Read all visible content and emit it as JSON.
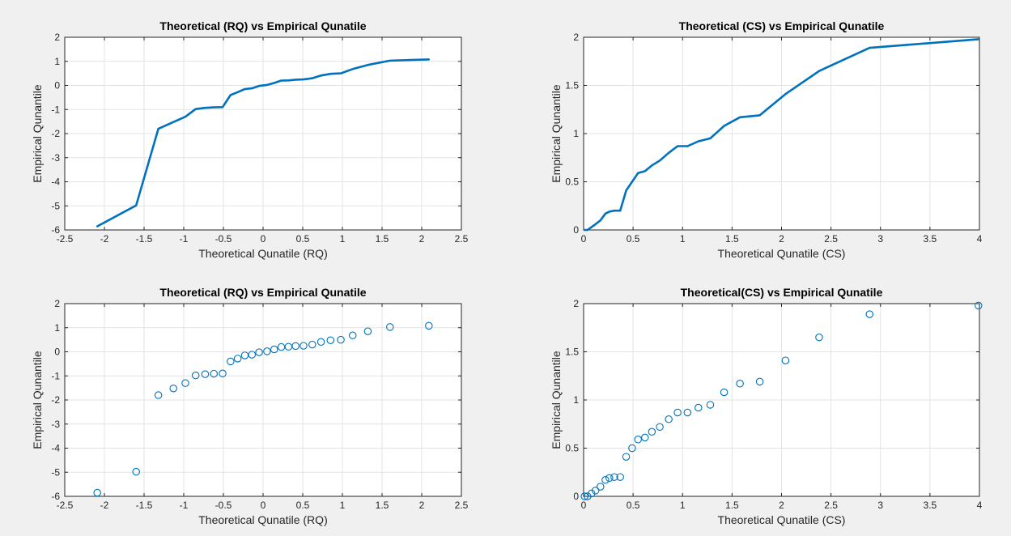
{
  "figure": {
    "background": "#f0f0f0",
    "line_color": "#0072bd",
    "grid_color": "#e3e3e3"
  },
  "chart_data": [
    {
      "type": "line",
      "title": "Theoretical (RQ) vs Empirical Qunatile",
      "xlabel": "Theoretical Qunatile (RQ)",
      "ylabel": "Empirical Qunantile",
      "xlim": [
        -2.5,
        2.5
      ],
      "ylim": [
        -6,
        2
      ],
      "xticks": [
        -2.5,
        -2,
        -1.5,
        -1,
        -0.5,
        0,
        0.5,
        1,
        1.5,
        2,
        2.5
      ],
      "xtick_labels": [
        "-2.5",
        "-2",
        "-1.5",
        "-1",
        "-0.5",
        "0",
        "0.5",
        "1",
        "1.5",
        "2",
        "2.5"
      ],
      "yticks": [
        -6,
        -5,
        -4,
        -3,
        -2,
        -1,
        0,
        1,
        2
      ],
      "ytick_labels": [
        "-6",
        "-5",
        "-4",
        "-3",
        "-2",
        "-1",
        "0",
        "1",
        "2"
      ],
      "grid": true,
      "series": [
        {
          "x": [
            -2.09,
            -1.6,
            -1.32,
            -1.13,
            -0.98,
            -0.85,
            -0.73,
            -0.62,
            -0.51,
            -0.41,
            -0.32,
            -0.23,
            -0.14,
            -0.05,
            0.05,
            0.14,
            0.23,
            0.32,
            0.41,
            0.51,
            0.62,
            0.73,
            0.85,
            0.98,
            1.13,
            1.32,
            1.6,
            2.09
          ],
          "y": [
            -5.85,
            -4.98,
            -1.8,
            -1.52,
            -1.3,
            -0.98,
            -0.93,
            -0.91,
            -0.9,
            -0.4,
            -0.28,
            -0.15,
            -0.12,
            -0.02,
            0.02,
            0.1,
            0.2,
            0.21,
            0.24,
            0.25,
            0.3,
            0.41,
            0.48,
            0.5,
            0.68,
            0.85,
            1.03,
            1.08
          ]
        }
      ]
    },
    {
      "type": "line",
      "title": "Theoretical (CS)  vs Empirical Qunatile",
      "xlabel": "Theoretical Qunatile (CS)",
      "ylabel": "Empirical Qunantile",
      "xlim": [
        0,
        4
      ],
      "ylim": [
        0,
        2
      ],
      "xticks": [
        0,
        0.5,
        1,
        1.5,
        2,
        2.5,
        3,
        3.5,
        4
      ],
      "xtick_labels": [
        "0",
        "0.5",
        "1",
        "1.5",
        "2",
        "2.5",
        "3",
        "3.5",
        "4"
      ],
      "yticks": [
        0,
        0.5,
        1,
        1.5,
        2
      ],
      "ytick_labels": [
        "0",
        "0.5",
        "1",
        "1.5",
        "2"
      ],
      "grid": true,
      "series": [
        {
          "x": [
            0.01,
            0.04,
            0.08,
            0.12,
            0.17,
            0.22,
            0.26,
            0.31,
            0.37,
            0.43,
            0.49,
            0.55,
            0.62,
            0.69,
            0.77,
            0.86,
            0.95,
            1.05,
            1.16,
            1.28,
            1.42,
            1.58,
            1.78,
            2.04,
            2.38,
            2.89,
            3.99
          ],
          "y": [
            0.0,
            0.0,
            0.03,
            0.06,
            0.1,
            0.17,
            0.19,
            0.2,
            0.2,
            0.41,
            0.5,
            0.59,
            0.61,
            0.67,
            0.72,
            0.8,
            0.87,
            0.87,
            0.92,
            0.95,
            1.08,
            1.17,
            1.19,
            1.41,
            1.65,
            1.89,
            1.98
          ]
        }
      ]
    },
    {
      "type": "scatter",
      "title": "Theoretical (RQ) vs Empirical Qunatile",
      "xlabel": "Theoretical Qunatile (RQ)",
      "ylabel": "Empirical Qunantile",
      "xlim": [
        -2.5,
        2.5
      ],
      "ylim": [
        -6,
        2
      ],
      "xticks": [
        -2.5,
        -2,
        -1.5,
        -1,
        -0.5,
        0,
        0.5,
        1,
        1.5,
        2,
        2.5
      ],
      "xtick_labels": [
        "-2.5",
        "-2",
        "-1.5",
        "-1",
        "-0.5",
        "0",
        "0.5",
        "1",
        "1.5",
        "2",
        "2.5"
      ],
      "yticks": [
        -6,
        -5,
        -4,
        -3,
        -2,
        -1,
        0,
        1,
        2
      ],
      "ytick_labels": [
        "-6",
        "-5",
        "-4",
        "-3",
        "-2",
        "-1",
        "0",
        "1",
        "2"
      ],
      "grid": true,
      "series": [
        {
          "x": [
            -2.09,
            -1.6,
            -1.32,
            -1.13,
            -0.98,
            -0.85,
            -0.73,
            -0.62,
            -0.51,
            -0.41,
            -0.32,
            -0.23,
            -0.14,
            -0.05,
            0.05,
            0.14,
            0.23,
            0.32,
            0.41,
            0.51,
            0.62,
            0.73,
            0.85,
            0.98,
            1.13,
            1.32,
            1.6,
            2.09
          ],
          "y": [
            -5.85,
            -4.98,
            -1.8,
            -1.52,
            -1.3,
            -0.98,
            -0.93,
            -0.91,
            -0.9,
            -0.4,
            -0.28,
            -0.15,
            -0.12,
            -0.02,
            0.02,
            0.1,
            0.2,
            0.21,
            0.24,
            0.25,
            0.3,
            0.41,
            0.48,
            0.5,
            0.68,
            0.85,
            1.03,
            1.08
          ]
        }
      ]
    },
    {
      "type": "scatter",
      "title": "Theoretical(CS)  vs Empirical Qunatile",
      "xlabel": "Theoretical Qunatile (CS)",
      "ylabel": "Empirical Qunantile",
      "xlim": [
        0,
        4
      ],
      "ylim": [
        0,
        2
      ],
      "xticks": [
        0,
        0.5,
        1,
        1.5,
        2,
        2.5,
        3,
        3.5,
        4
      ],
      "xtick_labels": [
        "0",
        "0.5",
        "1",
        "1.5",
        "2",
        "2.5",
        "3",
        "3.5",
        "4"
      ],
      "yticks": [
        0,
        0.5,
        1,
        1.5,
        2
      ],
      "ytick_labels": [
        "0",
        "0.5",
        "1",
        "1.5",
        "2"
      ],
      "grid": true,
      "series": [
        {
          "x": [
            0.01,
            0.04,
            0.08,
            0.12,
            0.17,
            0.22,
            0.26,
            0.31,
            0.37,
            0.43,
            0.49,
            0.55,
            0.62,
            0.69,
            0.77,
            0.86,
            0.95,
            1.05,
            1.16,
            1.28,
            1.42,
            1.58,
            1.78,
            2.04,
            2.38,
            2.89,
            3.99
          ],
          "y": [
            0.0,
            0.0,
            0.03,
            0.06,
            0.1,
            0.17,
            0.19,
            0.2,
            0.2,
            0.41,
            0.5,
            0.59,
            0.61,
            0.67,
            0.72,
            0.8,
            0.87,
            0.87,
            0.92,
            0.95,
            1.08,
            1.17,
            1.19,
            1.41,
            1.65,
            1.89,
            1.98
          ]
        }
      ]
    }
  ]
}
